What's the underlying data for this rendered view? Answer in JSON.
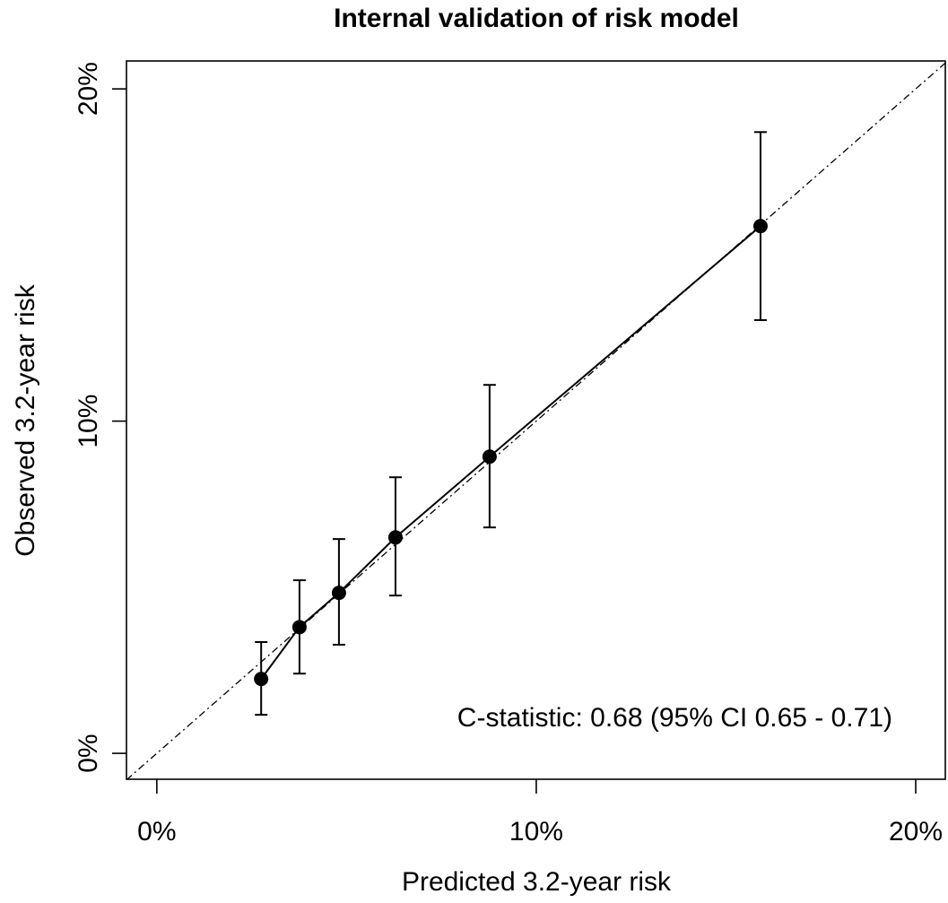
{
  "chart_data": {
    "type": "scatter",
    "title": "Internal validation of risk model",
    "x_label": "Predicted 3.2-year risk",
    "y_label": "Observed 3.2-year risk",
    "annotation": "C-statistic: 0.68 (95% CI 0.65 - 0.71)",
    "xlim": [
      -0.8,
      20.78
    ],
    "ylim": [
      -0.78,
      20.84
    ],
    "xticks": [
      {
        "value": 0,
        "label": "0%"
      },
      {
        "value": 10,
        "label": "10%"
      },
      {
        "value": 20,
        "label": "20%"
      }
    ],
    "yticks": [
      {
        "value": 0,
        "label": "0%"
      },
      {
        "value": 10,
        "label": "10%"
      },
      {
        "value": 20,
        "label": "20%"
      }
    ],
    "reference_line": true,
    "connect_points": true,
    "color": "#000000",
    "x": [
      2.75,
      3.76,
      4.8,
      6.29,
      8.77,
      15.91
    ],
    "values": [
      2.24,
      3.8,
      4.83,
      6.5,
      8.93,
      15.87
    ],
    "lower": [
      1.16,
      2.4,
      3.27,
      4.75,
      6.8,
      13.04
    ],
    "upper": [
      3.35,
      5.21,
      6.45,
      8.31,
      11.09,
      18.7
    ]
  }
}
